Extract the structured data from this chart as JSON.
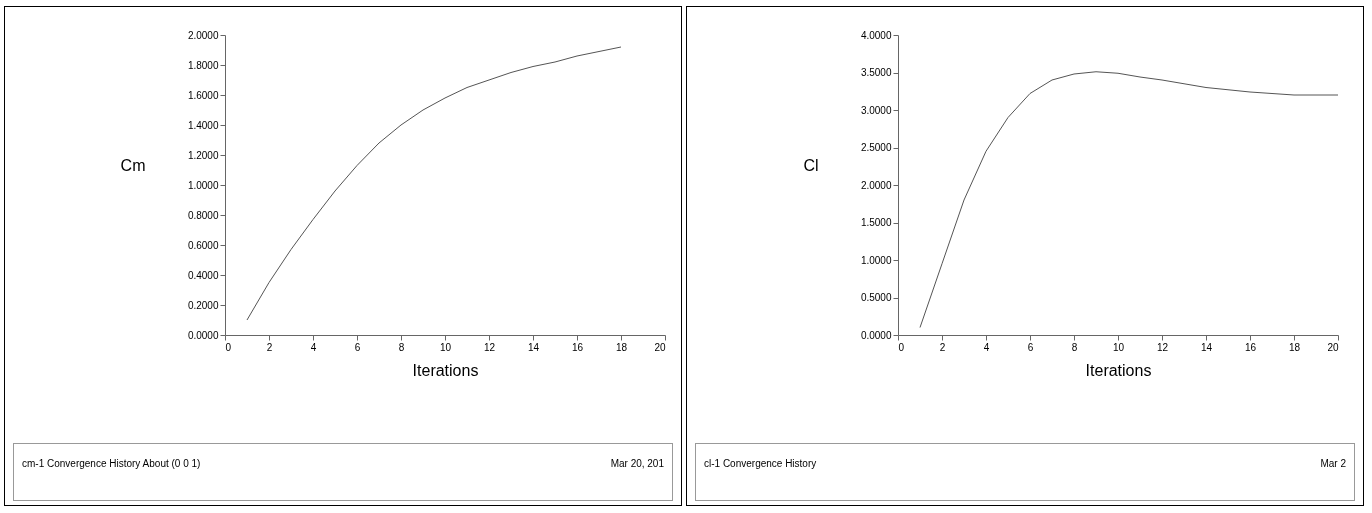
{
  "chart_data": [
    {
      "type": "line",
      "xlabel": "Iterations",
      "ylabel": "Cm",
      "x": [
        1,
        2,
        3,
        4,
        5,
        6,
        7,
        8,
        9,
        10,
        11,
        12,
        13,
        14,
        15,
        16,
        17,
        18
      ],
      "series": [
        {
          "color": "#555555",
          "values": [
            0.1,
            0.35,
            0.57,
            0.77,
            0.96,
            1.13,
            1.28,
            1.4,
            1.5,
            1.58,
            1.65,
            1.7,
            1.75,
            1.79,
            1.82,
            1.86,
            1.89,
            1.92
          ]
        }
      ],
      "xlim": [
        0,
        20
      ],
      "xticks": [
        0,
        2,
        4,
        6,
        8,
        10,
        12,
        14,
        16,
        18,
        20
      ],
      "ylim": [
        0,
        2
      ],
      "yticks": [
        {
          "value": 0,
          "label": "0.0000"
        },
        {
          "value": 0.2,
          "label": "0.2000"
        },
        {
          "value": 0.4,
          "label": "0.4000"
        },
        {
          "value": 0.6,
          "label": "0.6000"
        },
        {
          "value": 0.8,
          "label": "0.8000"
        },
        {
          "value": 1,
          "label": "1.0000"
        },
        {
          "value": 1.2,
          "label": "1.2000"
        },
        {
          "value": 1.4,
          "label": "1.4000"
        },
        {
          "value": 1.6,
          "label": "1.6000"
        },
        {
          "value": 1.8,
          "label": "1.8000"
        },
        {
          "value": 2,
          "label": "2.0000"
        }
      ],
      "grid": false,
      "annotations": [
        "cm-1 Convergence History About (0 0 1)",
        "Mar 20, 201"
      ]
    },
    {
      "type": "line",
      "xlabel": "Iterations",
      "ylabel": "Cl",
      "x": [
        1,
        2,
        3,
        4,
        5,
        6,
        7,
        8,
        9,
        10,
        11,
        12,
        13,
        14,
        15,
        16,
        17,
        18,
        19,
        20
      ],
      "series": [
        {
          "color": "#555555",
          "values": [
            0.1,
            0.95,
            1.8,
            2.45,
            2.9,
            3.22,
            3.4,
            3.48,
            3.51,
            3.49,
            3.44,
            3.4,
            3.35,
            3.3,
            3.27,
            3.24,
            3.22,
            3.2,
            3.2,
            3.2
          ]
        }
      ],
      "xlim": [
        0,
        20
      ],
      "xticks": [
        0,
        2,
        4,
        6,
        8,
        10,
        12,
        14,
        16,
        18,
        20
      ],
      "ylim": [
        0,
        4
      ],
      "yticks": [
        {
          "value": 0,
          "label": "0.0000"
        },
        {
          "value": 0.5,
          "label": "0.5000"
        },
        {
          "value": 1,
          "label": "1.0000"
        },
        {
          "value": 1.5,
          "label": "1.5000"
        },
        {
          "value": 2,
          "label": "2.0000"
        },
        {
          "value": 2.5,
          "label": "2.5000"
        },
        {
          "value": 3,
          "label": "3.0000"
        },
        {
          "value": 3.5,
          "label": "3.5000"
        },
        {
          "value": 4,
          "label": "4.0000"
        }
      ],
      "grid": false,
      "annotations": [
        "cl-1 Convergence History",
        "Mar 2"
      ]
    }
  ]
}
